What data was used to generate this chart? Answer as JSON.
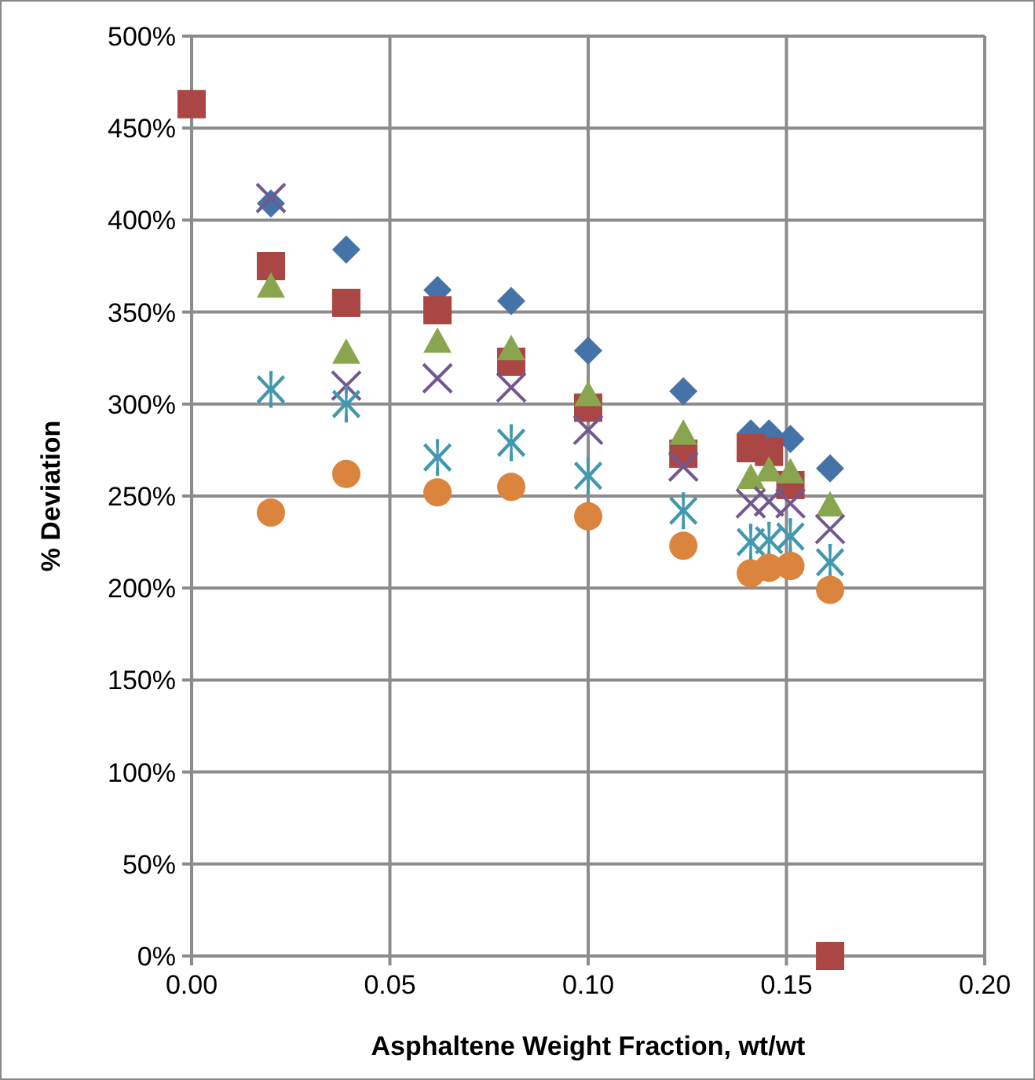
{
  "chart_data": {
    "type": "scatter",
    "xlabel": "Asphaltene Weight Fraction, wt/wt",
    "ylabel": "% Deviation",
    "xlim": [
      0,
      0.2
    ],
    "xticks": [
      {
        "value": 0,
        "label": "0.00"
      },
      {
        "value": 0.05,
        "label": "0.05"
      },
      {
        "value": 0.1,
        "label": "0.10"
      },
      {
        "value": 0.15,
        "label": "0.15"
      },
      {
        "value": 0.2,
        "label": "0.20"
      }
    ],
    "ylim": [
      0,
      500
    ],
    "yticks": [
      {
        "value": 0,
        "label": "0%"
      },
      {
        "value": 50,
        "label": "50%"
      },
      {
        "value": 100,
        "label": "100%"
      },
      {
        "value": 150,
        "label": "150%"
      },
      {
        "value": 200,
        "label": "200%"
      },
      {
        "value": 250,
        "label": "250%"
      },
      {
        "value": 300,
        "label": "300%"
      },
      {
        "value": 350,
        "label": "350%"
      },
      {
        "value": 400,
        "label": "400%"
      },
      {
        "value": 450,
        "label": "450%"
      },
      {
        "value": 500,
        "label": "500%"
      }
    ],
    "grid": true,
    "x": [
      0.02,
      0.039,
      0.062,
      0.0806,
      0.1,
      0.124,
      0.141,
      0.1456,
      0.151,
      0.161
    ],
    "series": [
      {
        "color": "#4572a7",
        "marker": "diamond",
        "values": [
          409,
          384,
          362,
          356,
          329,
          307,
          284,
          284,
          281,
          265
        ]
      },
      {
        "color": "#aa4643",
        "marker": "square",
        "x": [
          0,
          0.02,
          0.039,
          0.062,
          0.0806,
          0.1,
          0.124,
          0.141,
          0.1456,
          0.151,
          0.161
        ],
        "values": [
          463,
          375,
          355,
          351,
          323,
          298,
          273,
          276,
          274,
          256,
          0
        ]
      },
      {
        "color": "#89a54e",
        "marker": "triangle",
        "values": [
          364,
          328,
          334,
          330,
          305,
          284,
          260,
          264,
          263,
          245
        ]
      },
      {
        "color": "#71588f",
        "marker": "cross",
        "values": [
          412,
          310,
          314,
          309,
          286,
          266,
          246,
          247,
          246,
          232
        ]
      },
      {
        "color": "#4198af",
        "marker": "star",
        "values": [
          308,
          300,
          271,
          279,
          261,
          242,
          225,
          226,
          228,
          214
        ]
      },
      {
        "color": "#db843d",
        "marker": "circle",
        "values": [
          241,
          262,
          252,
          255,
          239,
          223,
          208,
          211,
          212,
          199
        ]
      }
    ]
  }
}
